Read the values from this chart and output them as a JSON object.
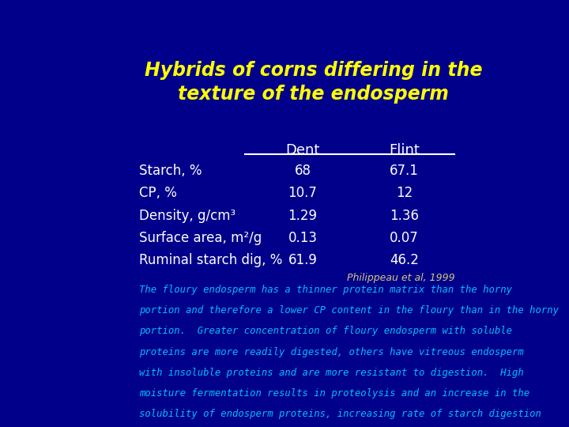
{
  "title_line1": "Hybrids of corns differing in the",
  "title_line2": "texture of the endosperm",
  "title_color": "#FFFF00",
  "bg_color": "#00008B",
  "table_header": [
    "Dent",
    "Flint"
  ],
  "row_labels": [
    "Starch, %",
    "CP, %",
    "Density, g/cm³",
    "Surface area, m²/g",
    "Ruminal starch dig, %"
  ],
  "dent_values": [
    "68",
    "10.7",
    "1.29",
    "0.13",
    "61.9"
  ],
  "flint_values": [
    "67.1",
    "12",
    "1.36",
    "0.07",
    "46.2"
  ],
  "header_color": "#FFFFFF",
  "data_color": "#FFFFFF",
  "label_color": "#FFFFFF",
  "citation": "Philippeau et al, 1999",
  "citation_color": "#D4C97A",
  "body_text_color": "#00BFFF",
  "body_line1": "The floury endosperm has a thinner protein matrix than the horny",
  "body_line2": "portion and therefore a lower CP content in the floury than in the horny",
  "body_line3": "portion.  Greater concentration of floury endosperm with soluble",
  "body_line4": "proteins are more readily digested, others have vitreous endosperm",
  "body_line5": "with insoluble proteins and are more resistant to digestion.  High",
  "body_line6": "moisture fermentation results in proteolysis and an increase in the",
  "body_line7": "solubility of endosperm proteins, increasing rate of starch digestion"
}
